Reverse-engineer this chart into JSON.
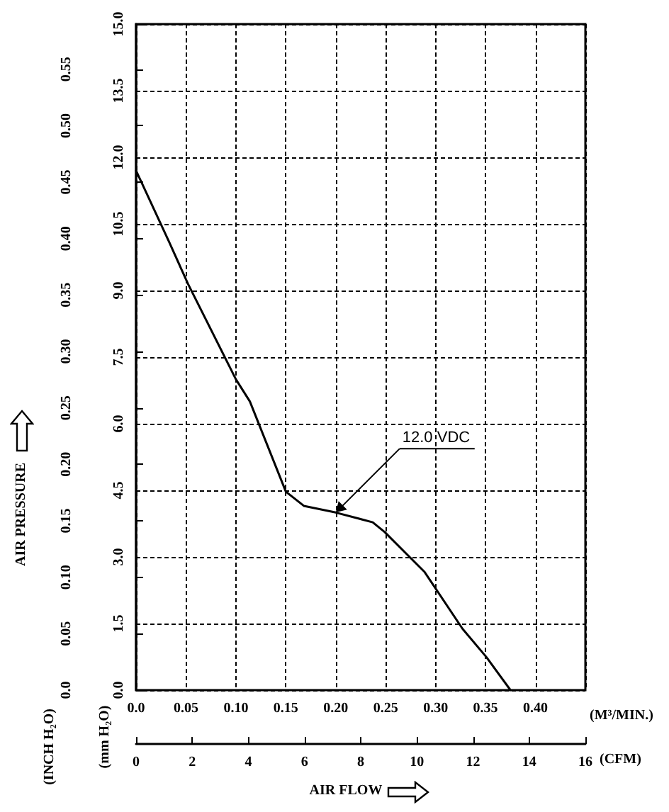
{
  "chart_data": {
    "type": "line",
    "xlabel": "(M³/MIN.)",
    "ylabel": "(mm H₂O)",
    "y2label": "(INCH H₂O)",
    "x2label": "(CFM)",
    "annotations": [
      "AIR PRESSURE",
      "AIR FLOW",
      {
        "text": "12.0 VDC",
        "x": 0.2,
        "y": 4.0
      }
    ],
    "x": [
      0,
      0.033,
      0.052,
      0.1,
      0.114,
      0.15,
      0.168,
      0.2,
      0.237,
      0.249,
      0.289,
      0.327,
      0.351,
      0.375
    ],
    "series": [
      {
        "color": "#000000",
        "values": [
          11.7,
          10.1,
          9.15,
          7.0,
          6.5,
          4.47,
          4.15,
          4.0,
          3.78,
          3.56,
          2.66,
          1.38,
          0.74,
          0
        ]
      }
    ],
    "xlim": [
      0,
      0.45
    ],
    "xticks": [
      {
        "value": 0,
        "label": "0.0"
      },
      0.05,
      {
        "value": 0.1,
        "label": "0.10"
      },
      0.15,
      {
        "value": 0.2,
        "label": "0.20"
      },
      0.25,
      {
        "value": 0.3,
        "label": "0.30"
      },
      0.35,
      {
        "value": 0.4,
        "label": "0.40"
      }
    ],
    "ylim": [
      0,
      15
    ],
    "yticks": [
      {
        "value": 0,
        "label": "0.0"
      },
      1.5,
      {
        "value": 3,
        "label": "3.0"
      },
      4.5,
      {
        "value": 6,
        "label": "6.0"
      },
      7.5,
      {
        "value": 9,
        "label": "9.0"
      },
      10.5,
      {
        "value": 12,
        "label": "12.0"
      },
      13.5,
      {
        "value": 15,
        "label": "15.0"
      }
    ],
    "y2lim": [
      0,
      0.59
    ],
    "y2ticks": [
      {
        "value": 0,
        "label": "0.0"
      },
      0.05,
      {
        "value": 0.1,
        "label": "0.10"
      },
      0.15,
      {
        "value": 0.2,
        "label": "0.20"
      },
      0.25,
      {
        "value": 0.3,
        "label": "0.30"
      },
      0.35,
      {
        "value": 0.4,
        "label": "0.40"
      },
      0.45,
      {
        "value": 0.5,
        "label": "0.50"
      },
      0.55
    ],
    "x2lim": [
      0,
      16
    ],
    "x2ticks": [
      0,
      2,
      4,
      6,
      8,
      10,
      12,
      14,
      16
    ],
    "grid": true,
    "marker": "none",
    "line_style": "solid"
  }
}
